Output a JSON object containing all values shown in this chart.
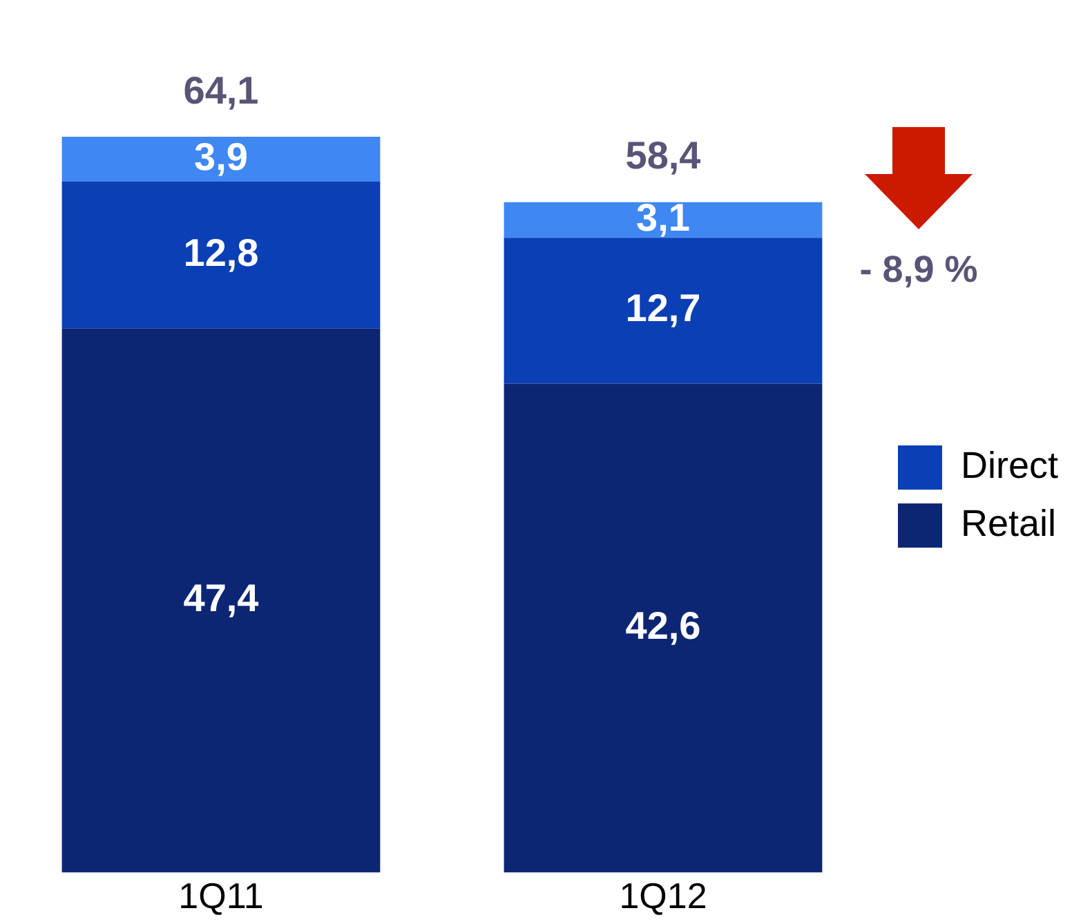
{
  "chart_data": {
    "type": "bar",
    "stacked": true,
    "categories": [
      "1Q11",
      "1Q12"
    ],
    "series": [
      {
        "name": "Retail",
        "color": "#0d2674",
        "values": [
          47.4,
          42.6
        ],
        "value_labels": [
          "47,4",
          "42,6"
        ]
      },
      {
        "name": "Direct",
        "color": "#0b3fb5",
        "values": [
          12.8,
          12.7
        ],
        "value_labels": [
          "12,8",
          "12,7"
        ]
      },
      {
        "color": "#3f87f2",
        "values": [
          3.9,
          3.1
        ],
        "value_labels": [
          "3,9",
          "3,1"
        ]
      }
    ],
    "totals": [
      "64,1",
      "58,4"
    ],
    "annotations": [
      "- 8,9 %"
    ],
    "legend": "right",
    "tick_labels": "x",
    "grid": false
  }
}
